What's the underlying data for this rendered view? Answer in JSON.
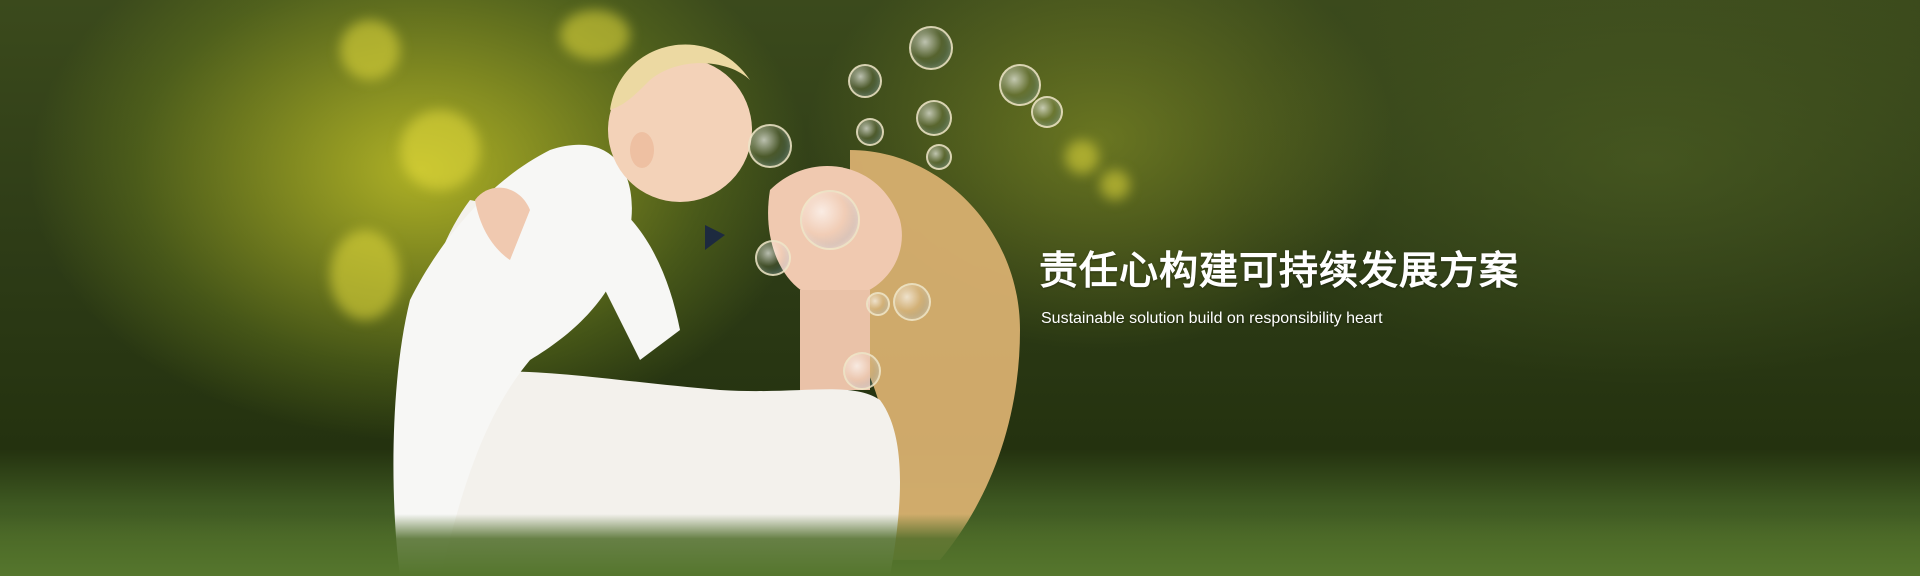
{
  "banner": {
    "headline": "责任心构建可持续发展方案",
    "subline": "Sustainable solution build on responsibility heart",
    "colors": {
      "text": "#ffffff",
      "foliage_dark": "#24320f",
      "foliage_light": "#c4c428",
      "grass": "#55762d"
    },
    "image": {
      "description_icon": "mother-kissing-baby-photo"
    }
  }
}
